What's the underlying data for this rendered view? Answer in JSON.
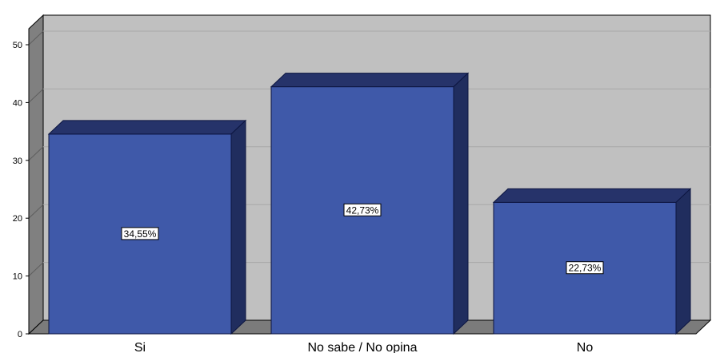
{
  "chart_data": {
    "type": "bar",
    "categories": [
      "Si",
      "No sabe / No opina",
      "No"
    ],
    "values": [
      34.55,
      42.73,
      22.73
    ],
    "data_labels": [
      "34,55%",
      "42,73%",
      "22,73%"
    ],
    "ylim": [
      0,
      50
    ],
    "yticks": [
      0,
      10,
      20,
      30,
      40,
      50
    ],
    "ytick_labels": [
      "0",
      "10",
      "20",
      "30",
      "40",
      "50"
    ],
    "title": "",
    "xlabel": "",
    "ylabel": "",
    "grid": true,
    "style": "3d",
    "colors": {
      "bar_front": "#3f59a9",
      "bar_top": "#26336a",
      "bar_side": "#202d5e",
      "bar_edge": "#0c1540",
      "plot_back": "#c0c0c0",
      "plot_floor": "#7b7b7b",
      "plot_wall": "#808080",
      "grid": "#a8a8a8"
    }
  }
}
